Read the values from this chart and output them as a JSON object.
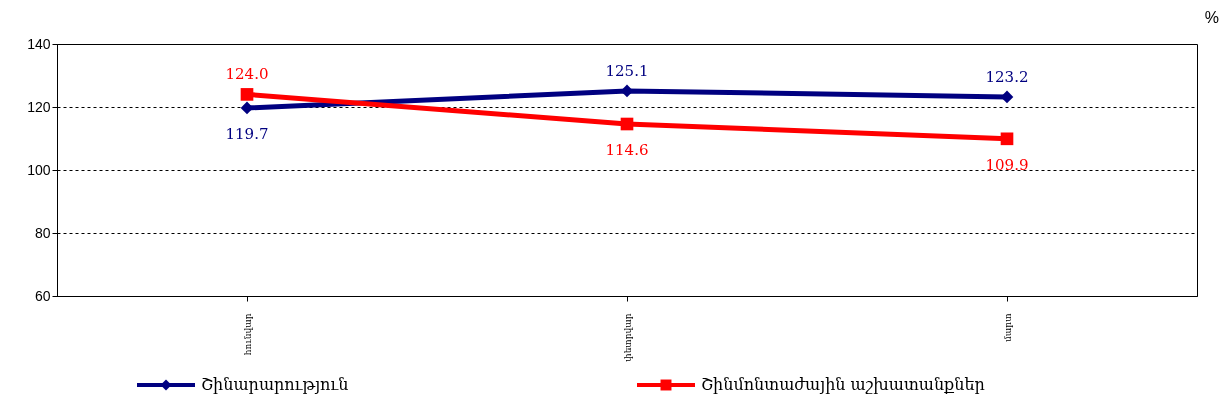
{
  "chart_data": {
    "type": "line",
    "categories": [
      "հունվար",
      "փետրվար",
      "մարտ"
    ],
    "series": [
      {
        "name": "Շինարարություն",
        "color": "#000080",
        "marker": "diamond",
        "values": [
          119.7,
          125.1,
          123.2
        ],
        "value_labels": [
          "119.7",
          "125.1",
          "123.2"
        ]
      },
      {
        "name": "Շինմոնտաժային աշխատանքներ",
        "color": "#ff0000",
        "marker": "square",
        "values": [
          124.0,
          114.6,
          109.9
        ],
        "value_labels": [
          "124.0",
          "114.6",
          "109.9"
        ]
      }
    ],
    "ylim": [
      60,
      140
    ],
    "yticks": [
      60,
      80,
      100,
      120,
      140
    ],
    "grid": "y",
    "legend": "bottom",
    "line_style": "solid",
    "annotations": [
      "%"
    ]
  }
}
